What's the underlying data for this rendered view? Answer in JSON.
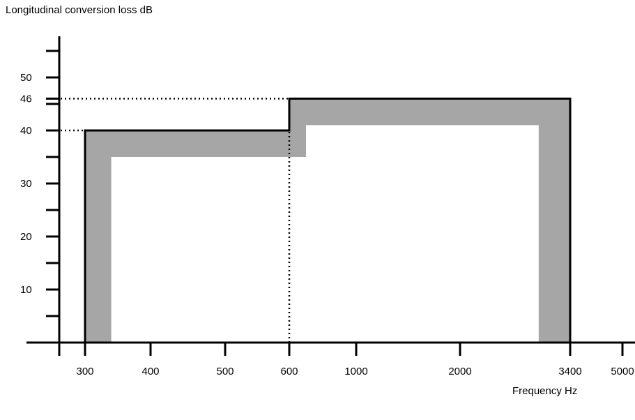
{
  "chart_data": {
    "type": "area",
    "ylabel": "Longitudinal conversion loss dB",
    "xlabel": "Frequency Hz",
    "x_ticks": [
      300,
      400,
      500,
      600,
      1000,
      2000,
      3400,
      5000
    ],
    "y_ticks": [
      10,
      20,
      30,
      40,
      46,
      50
    ],
    "ylim": [
      0,
      50
    ],
    "grid": false,
    "limit_line": {
      "points": [
        {
          "x": 300,
          "y": 0
        },
        {
          "x": 300,
          "y": 40
        },
        {
          "x": 600,
          "y": 40
        },
        {
          "x": 600,
          "y": 46
        },
        {
          "x": 3400,
          "y": 46
        },
        {
          "x": 3400,
          "y": 0
        }
      ]
    },
    "shaded_band": {
      "color": "#a6a6a6",
      "outer": [
        {
          "x": 300,
          "y": 0
        },
        {
          "x": 300,
          "y": 40
        },
        {
          "x": 600,
          "y": 40
        },
        {
          "x": 600,
          "y": 46
        },
        {
          "x": 3400,
          "y": 46
        },
        {
          "x": 3400,
          "y": 0
        }
      ],
      "inner": [
        {
          "x": 340,
          "y": 0
        },
        {
          "x": 340,
          "y": 35
        },
        {
          "x": 700,
          "y": 35
        },
        {
          "x": 700,
          "y": 41
        },
        {
          "x": 3000,
          "y": 41
        },
        {
          "x": 3000,
          "y": 0
        }
      ]
    },
    "reference_lines": [
      {
        "type": "horizontal",
        "y": 46,
        "x_to": 600,
        "style": "dotted"
      },
      {
        "type": "horizontal",
        "y": 40,
        "x_to": 300,
        "style": "dotted"
      },
      {
        "type": "vertical",
        "x": 600,
        "y_to": 40,
        "style": "dotted"
      }
    ]
  }
}
